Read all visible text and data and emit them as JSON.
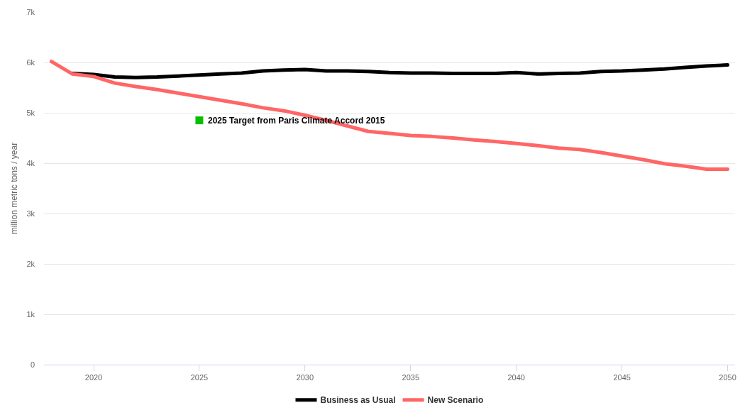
{
  "chart_data": {
    "type": "line",
    "x": [
      2018,
      2019,
      2020,
      2021,
      2022,
      2023,
      2024,
      2025,
      2026,
      2027,
      2028,
      2029,
      2030,
      2031,
      2032,
      2033,
      2034,
      2035,
      2036,
      2037,
      2038,
      2039,
      2040,
      2041,
      2042,
      2043,
      2044,
      2045,
      2046,
      2047,
      2048,
      2049,
      2050
    ],
    "series": [
      {
        "name": "Business as Usual",
        "color": "#000000",
        "values": [
          null,
          5780,
          5760,
          5710,
          5700,
          5710,
          5730,
          5750,
          5770,
          5790,
          5830,
          5850,
          5860,
          5830,
          5830,
          5820,
          5800,
          5790,
          5790,
          5780,
          5780,
          5780,
          5800,
          5770,
          5780,
          5790,
          5820,
          5830,
          5850,
          5870,
          5900,
          5930,
          5950
        ]
      },
      {
        "name": "New Scenario",
        "color": "#ff6666",
        "values": [
          6020,
          5770,
          5720,
          5590,
          5520,
          5460,
          5390,
          5320,
          5250,
          5180,
          5100,
          5040,
          4950,
          4850,
          4740,
          4630,
          4590,
          4550,
          4530,
          4500,
          4460,
          4430,
          4390,
          4350,
          4300,
          4270,
          4210,
          4140,
          4070,
          3990,
          3940,
          3880,
          3880
        ]
      },
      {
        "type": "scatter",
        "color": "#00c000",
        "x": [
          2025
        ],
        "values": [
          4850
        ],
        "marker": "square"
      }
    ],
    "annotations": [
      {
        "text": "2025 Target from Paris Climate Accord 2015",
        "x": 2025,
        "y": 4850
      }
    ],
    "ylabel": "million metric tons / year",
    "xlim": [
      2017.65,
      2050.35
    ],
    "xticks": [
      2020,
      2025,
      2030,
      2035,
      2040,
      2045,
      2050
    ],
    "ylim": [
      0,
      7000
    ],
    "yticks": [
      0,
      {
        "value": 1000,
        "label": "1k"
      },
      {
        "value": 2000,
        "label": "2k"
      },
      {
        "value": 3000,
        "label": "3k"
      },
      {
        "value": 4000,
        "label": "4k"
      },
      {
        "value": 5000,
        "label": "5k"
      },
      {
        "value": 6000,
        "label": "6k"
      },
      {
        "value": 7000,
        "label": "7k"
      }
    ],
    "grid": "y",
    "legend": "bottom",
    "line_style": "solid"
  }
}
